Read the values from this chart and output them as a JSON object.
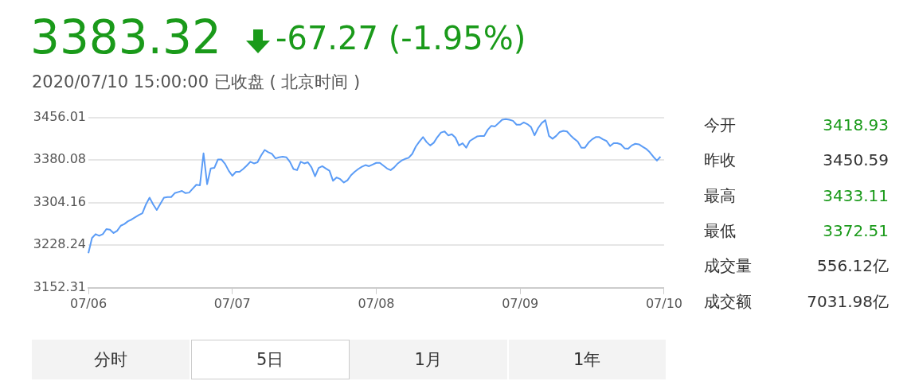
{
  "chart_data": {
    "type": "line",
    "title": "3383.32",
    "subtitle": "-67.27 (-1.95%)",
    "annotations": [
      "2020/07/10 15:00:00 已收盘 ( 北京时间 )",
      "今开",
      "3418.93",
      "昨收",
      "3450.59",
      "最高",
      "3433.11",
      "最低",
      "3372.51",
      "成交量",
      "556.12亿",
      "成交额",
      "7031.98亿",
      "分时",
      "5日",
      "1月",
      "1年"
    ],
    "categories": [
      "07/06",
      null,
      null,
      null,
      null,
      null,
      null,
      null,
      null,
      null,
      null,
      null,
      null,
      null,
      null,
      null,
      null,
      null,
      null,
      null,
      null,
      null,
      null,
      null,
      null,
      null,
      null,
      null,
      null,
      null,
      null,
      null,
      null,
      null,
      null,
      null,
      null,
      null,
      null,
      null,
      "07/07",
      null,
      null,
      null,
      null,
      null,
      null,
      null,
      null,
      null,
      null,
      null,
      null,
      null,
      null,
      null,
      null,
      null,
      null,
      null,
      null,
      null,
      null,
      null,
      null,
      null,
      null,
      null,
      null,
      null,
      null,
      null,
      null,
      null,
      null,
      null,
      null,
      null,
      null,
      null,
      "07/08",
      null,
      null,
      null,
      null,
      null,
      null,
      null,
      null,
      null,
      null,
      null,
      null,
      null,
      null,
      null,
      null,
      null,
      null,
      null,
      null,
      null,
      null,
      null,
      null,
      null,
      null,
      null,
      null,
      null,
      null,
      null,
      null,
      null,
      null,
      null,
      null,
      null,
      null,
      null,
      "07/09",
      null,
      null,
      null,
      null,
      null,
      null,
      null,
      null,
      null,
      null,
      null,
      null,
      null,
      null,
      null,
      null,
      null,
      null,
      null,
      null,
      null,
      null,
      null,
      null,
      null,
      null,
      null,
      null,
      null,
      null,
      null,
      null,
      null,
      null,
      null,
      null,
      null,
      null,
      null,
      "07/10"
    ],
    "ylim": [
      3152.31,
      3456.01
    ],
    "yticks": [
      3152.31,
      3228.24,
      3304.16,
      3380.08,
      3456.01
    ],
    "grid": "y",
    "legend": false,
    "marker": "none",
    "line_style": "solid",
    "series": [
      {
        "color": "#5b9cf6",
        "values": [
          3214,
          3241,
          3248,
          3245,
          3248,
          3257,
          3256,
          3250,
          3254,
          3263,
          3266,
          3271,
          3274,
          3278,
          3282,
          3285,
          3301,
          3313,
          3301,
          3291,
          3302,
          3313,
          3314,
          3314,
          3321,
          3323,
          3325,
          3321,
          3322,
          3329,
          3336,
          3335,
          3392,
          3337,
          3365,
          3366,
          3381,
          3381,
          3373,
          3361,
          3352,
          3359,
          3359,
          3364,
          3370,
          3377,
          3374,
          3376,
          3388,
          3398,
          3394,
          3391,
          3383,
          3385,
          3386,
          3385,
          3377,
          3364,
          3362,
          3377,
          3374,
          3376,
          3367,
          3351,
          3366,
          3369,
          3365,
          3361,
          3343,
          3349,
          3346,
          3340,
          3344,
          3353,
          3359,
          3364,
          3368,
          3371,
          3369,
          3372,
          3375,
          3375,
          3370,
          3365,
          3362,
          3367,
          3374,
          3379,
          3382,
          3384,
          3391,
          3404,
          3413,
          3421,
          3412,
          3406,
          3411,
          3421,
          3429,
          3431,
          3424,
          3426,
          3420,
          3406,
          3410,
          3402,
          3414,
          3418,
          3422,
          3423,
          3423,
          3434,
          3441,
          3440,
          3446,
          3452,
          3453,
          3452,
          3450,
          3443,
          3443,
          3447,
          3444,
          3439,
          3424,
          3437,
          3446,
          3451,
          3423,
          3418,
          3423,
          3430,
          3432,
          3431,
          3424,
          3418,
          3413,
          3402,
          3402,
          3411,
          3417,
          3421,
          3421,
          3417,
          3414,
          3405,
          3410,
          3410,
          3408,
          3401,
          3400,
          3406,
          3409,
          3408,
          3404,
          3400,
          3394,
          3386,
          3379,
          3386,
          null
        ]
      }
    ]
  }
}
